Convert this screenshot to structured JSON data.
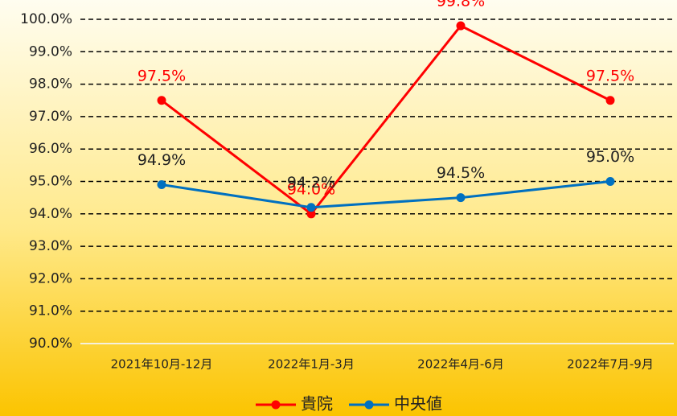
{
  "chart_data": {
    "type": "line",
    "categories": [
      "2021年10月-12月",
      "2022年1月-3月",
      "2022年4月-6月",
      "2022年7月-9月"
    ],
    "series": [
      {
        "name": "貴院",
        "color": "#ff0000",
        "values": [
          97.5,
          94.0,
          99.8,
          97.5
        ],
        "value_labels": [
          "97.5%",
          "94.0%",
          "99.8%",
          "97.5%"
        ]
      },
      {
        "name": "中央値",
        "color": "#0070c0",
        "values": [
          94.9,
          94.2,
          94.5,
          95.0
        ],
        "value_labels": [
          "94.9%",
          "94.2%",
          "94.5%",
          "95.0%"
        ]
      }
    ],
    "ylim": [
      90,
      100
    ],
    "yticks": [
      {
        "value": 90,
        "label": "90.0%"
      },
      {
        "value": 91,
        "label": "91.0%"
      },
      {
        "value": 92,
        "label": "92.0%"
      },
      {
        "value": 93,
        "label": "93.0%"
      },
      {
        "value": 94,
        "label": "94.0%"
      },
      {
        "value": 95,
        "label": "95.0%"
      },
      {
        "value": 96,
        "label": "96.0%"
      },
      {
        "value": 97,
        "label": "97.0%"
      },
      {
        "value": 98,
        "label": "98.0%"
      },
      {
        "value": 99,
        "label": "99.0%"
      },
      {
        "value": 100,
        "label": "100.0%"
      }
    ],
    "grid": true,
    "legend": "bottom"
  }
}
